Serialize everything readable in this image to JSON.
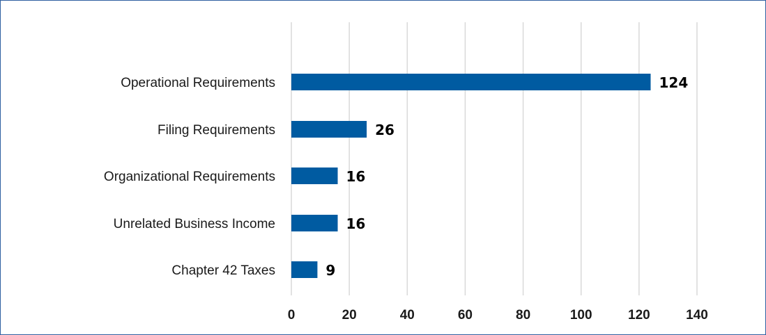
{
  "chart_data": {
    "type": "bar",
    "orientation": "horizontal",
    "title": "",
    "xlabel": "",
    "ylabel": "",
    "categories": [
      "Operational Requirements",
      "Filing Requirements",
      "Organizational Requirements",
      "Unrelated Business Income",
      "Chapter 42 Taxes"
    ],
    "values": [
      124,
      26,
      16,
      16,
      9
    ],
    "xlim": [
      0,
      140
    ],
    "x_ticks": [
      0,
      20,
      40,
      60,
      80,
      100,
      120,
      140
    ],
    "grid": true,
    "legend": "none",
    "bar_color": "#005ba1",
    "grid_color": "#d9d9d9"
  }
}
